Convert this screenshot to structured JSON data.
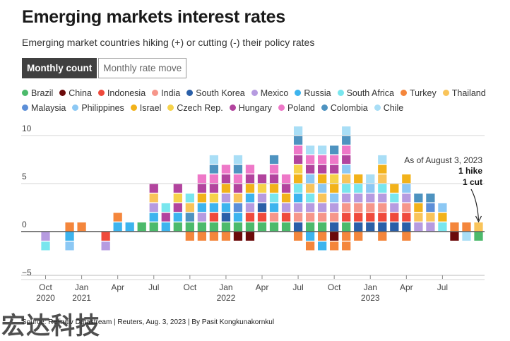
{
  "title": "Emerging markets interest rates",
  "subtitle": "Emerging market countries hiking (+) or cutting (-) their policy rates",
  "tabs": {
    "active": "Monthly count",
    "inactive": "Monthly rate move"
  },
  "footer": "Source: Refinitiv Datastream | Reuters, Aug. 3, 2023 | By Pasit Kongkunakornkul",
  "watermark": "宏达科技",
  "annotation": {
    "line1": "As of August 3, 2023",
    "line2": "1 hike",
    "line3": "1 cut"
  },
  "legend": [
    {
      "name": "Brazil",
      "color": "#4cba6b"
    },
    {
      "name": "China",
      "color": "#6b0a0a"
    },
    {
      "name": "Indonesia",
      "color": "#ef4a3c"
    },
    {
      "name": "India",
      "color": "#f6968a"
    },
    {
      "name": "South Korea",
      "color": "#2a5fa8"
    },
    {
      "name": "Mexico",
      "color": "#b69be0"
    },
    {
      "name": "Russia",
      "color": "#3db4ee"
    },
    {
      "name": "South Africa",
      "color": "#79e6ee"
    },
    {
      "name": "Turkey",
      "color": "#f4863c"
    },
    {
      "name": "Thailand",
      "color": "#f9c45a"
    },
    {
      "name": "Malaysia",
      "color": "#5c8fd8"
    },
    {
      "name": "Philippines",
      "color": "#8cc8f4"
    },
    {
      "name": "Israel",
      "color": "#f2b21a"
    },
    {
      "name": "Czech Rep.",
      "color": "#f6d24a"
    },
    {
      "name": "Hungary",
      "color": "#b2449e"
    },
    {
      "name": "Poland",
      "color": "#ee78c8"
    },
    {
      "name": "Colombia",
      "color": "#4e93c0"
    },
    {
      "name": "Chile",
      "color": "#a9def6"
    }
  ],
  "chart_data": {
    "type": "bar",
    "stacked": true,
    "grid": true,
    "y_ticks": [
      "10",
      "5",
      "0",
      "−5"
    ],
    "x_tick_labels": [
      {
        "month": "2020-10",
        "label": "Oct",
        "year": "2020"
      },
      {
        "month": "2021-01",
        "label": "Jan",
        "year": "2021"
      },
      {
        "month": "2021-04",
        "label": "Apr",
        "year": ""
      },
      {
        "month": "2021-07",
        "label": "Jul",
        "year": ""
      },
      {
        "month": "2021-10",
        "label": "Oct",
        "year": ""
      },
      {
        "month": "2022-01",
        "label": "Jan",
        "year": "2022"
      },
      {
        "month": "2022-04",
        "label": "Apr",
        "year": ""
      },
      {
        "month": "2022-07",
        "label": "Jul",
        "year": ""
      },
      {
        "month": "2022-10",
        "label": "Oct",
        "year": ""
      },
      {
        "month": "2023-01",
        "label": "Jan",
        "year": "2023"
      },
      {
        "month": "2023-04",
        "label": "Apr",
        "year": ""
      },
      {
        "month": "2023-07",
        "label": "Jul",
        "year": ""
      }
    ],
    "ylim": [
      -5.5,
      12
    ],
    "months": [
      {
        "m": "2020-10",
        "pos": [],
        "neg": [
          "Mexico",
          "South Africa"
        ]
      },
      {
        "m": "2020-11",
        "pos": [],
        "neg": []
      },
      {
        "m": "2020-12",
        "pos": [
          "Turkey"
        ],
        "neg": [
          "Russia",
          "Philippines"
        ]
      },
      {
        "m": "2021-01",
        "pos": [
          "Turkey"
        ],
        "neg": []
      },
      {
        "m": "2021-02",
        "pos": [],
        "neg": []
      },
      {
        "m": "2021-03",
        "pos": [],
        "neg": [
          "Indonesia",
          "Mexico"
        ]
      },
      {
        "m": "2021-04",
        "pos": [
          "Russia",
          "Turkey"
        ],
        "neg": []
      },
      {
        "m": "2021-05",
        "pos": [
          "Russia"
        ],
        "neg": []
      },
      {
        "m": "2021-06",
        "pos": [
          "Brazil"
        ],
        "neg": []
      },
      {
        "m": "2021-07",
        "pos": [
          "Brazil",
          "Russia",
          "Mexico",
          "Thailand",
          "Hungary"
        ],
        "neg": []
      },
      {
        "m": "2021-08",
        "pos": [
          "Russia",
          "Hungary",
          "South Africa"
        ],
        "neg": []
      },
      {
        "m": "2021-09",
        "pos": [
          "Brazil",
          "Russia",
          "Hungary",
          "Czech Rep.",
          "Hungary"
        ],
        "neg": []
      },
      {
        "m": "2021-10",
        "pos": [
          "Brazil",
          "Colombia",
          "Thailand",
          "South Africa"
        ],
        "neg": [
          "Turkey"
        ]
      },
      {
        "m": "2021-11",
        "pos": [
          "Brazil",
          "Mexico",
          "Russia",
          "Israel",
          "Hungary",
          "Poland"
        ],
        "neg": [
          "Turkey"
        ]
      },
      {
        "m": "2021-12",
        "pos": [
          "Brazil",
          "Indonesia",
          "Russia",
          "Czech Rep.",
          "Hungary",
          "Poland",
          "Colombia",
          "Chile"
        ],
        "neg": [
          "Turkey"
        ]
      },
      {
        "m": "2022-01",
        "pos": [
          "Brazil",
          "South Korea",
          "Russia",
          "Mexico",
          "Israel",
          "Hungary",
          "Poland"
        ],
        "neg": [
          "Turkey"
        ]
      },
      {
        "m": "2022-02",
        "pos": [
          "Brazil",
          "Russia",
          "Malaysia",
          "Thailand",
          "Hungary",
          "Poland",
          "Colombia",
          "Chile"
        ],
        "neg": [
          "China"
        ]
      },
      {
        "m": "2022-03",
        "pos": [
          "Brazil",
          "Indonesia",
          "Mexico",
          "Russia",
          "Israel",
          "Hungary",
          "Poland"
        ],
        "neg": [
          "China"
        ]
      },
      {
        "m": "2022-04",
        "pos": [
          "Brazil",
          "Indonesia",
          "South Korea",
          "Mexico",
          "Czech Rep.",
          "Hungary"
        ],
        "neg": []
      },
      {
        "m": "2022-05",
        "pos": [
          "Brazil",
          "India",
          "Russia",
          "South Africa",
          "Israel",
          "Hungary",
          "Poland",
          "Colombia"
        ],
        "neg": []
      },
      {
        "m": "2022-06",
        "pos": [
          "Brazil",
          "Indonesia",
          "Mexico",
          "Israel",
          "Hungary",
          "Poland"
        ],
        "neg": []
      },
      {
        "m": "2022-07",
        "pos": [
          "South Korea",
          "India",
          "Mexico",
          "Russia",
          "South Africa",
          "Israel",
          "Czech Rep.",
          "Hungary",
          "Poland",
          "Colombia",
          "Chile"
        ],
        "neg": [
          "Turkey"
        ]
      },
      {
        "m": "2022-08",
        "pos": [
          "Brazil",
          "India",
          "Mexico",
          "South Africa",
          "Thailand",
          "Philippines",
          "Hungary",
          "Poland",
          "Chile"
        ],
        "neg": [
          "Russia",
          "Turkey"
        ]
      },
      {
        "m": "2022-09",
        "pos": [
          "Brazil",
          "India",
          "Mexico",
          "Thailand",
          "Philippines",
          "Israel",
          "Hungary",
          "Poland",
          "Chile"
        ],
        "neg": [
          "Turkey",
          "Russia"
        ]
      },
      {
        "m": "2022-10",
        "pos": [
          "South Korea",
          "India",
          "Mexico",
          "Philippines",
          "Israel",
          "Czech Rep.",
          "Hungary",
          "Poland",
          "Colombia"
        ],
        "neg": [
          "China",
          "Turkey"
        ]
      },
      {
        "m": "2022-11",
        "pos": [
          "Brazil",
          "Indonesia",
          "India",
          "Mexico",
          "South Africa",
          "Thailand",
          "Philippines",
          "Hungary",
          "Poland",
          "Colombia",
          "Chile"
        ],
        "neg": [
          "Turkey",
          "Turkey"
        ]
      },
      {
        "m": "2022-12",
        "pos": [
          "South Korea",
          "Indonesia",
          "India",
          "Mexico",
          "South Africa",
          "Israel"
        ],
        "neg": [
          "Turkey"
        ]
      },
      {
        "m": "2023-01",
        "pos": [
          "South Korea",
          "Indonesia",
          "India",
          "Mexico",
          "Philippines",
          "Chile"
        ],
        "neg": []
      },
      {
        "m": "2023-02",
        "pos": [
          "South Korea",
          "Indonesia",
          "India",
          "Mexico",
          "South Africa",
          "Thailand",
          "Israel",
          "Chile"
        ],
        "neg": [
          "Turkey"
        ]
      },
      {
        "m": "2023-03",
        "pos": [
          "South Korea",
          "Indonesia",
          "Mexico",
          "South Africa",
          "Israel"
        ],
        "neg": []
      },
      {
        "m": "2023-04",
        "pos": [
          "South Korea",
          "Indonesia",
          "India",
          "Mexico",
          "Philippines",
          "Israel"
        ],
        "neg": [
          "Turkey"
        ]
      },
      {
        "m": "2023-05",
        "pos": [
          "Mexico",
          "Thailand",
          "Israel",
          "Colombia"
        ],
        "neg": []
      },
      {
        "m": "2023-06",
        "pos": [
          "Mexico",
          "Thailand",
          "Malaysia",
          "Colombia"
        ],
        "neg": []
      },
      {
        "m": "2023-07",
        "pos": [
          "South Africa",
          "Israel",
          "Philippines"
        ],
        "neg": []
      },
      {
        "m": "2023-08",
        "pos": [
          "Turkey"
        ],
        "neg": [
          "China"
        ]
      },
      {
        "m": "2023-09",
        "pos": [
          "Turkey"
        ],
        "neg": [
          "Chile"
        ]
      },
      {
        "m": "2023-10",
        "pos": [
          "Thailand"
        ],
        "neg": [
          "Brazil"
        ]
      }
    ]
  }
}
